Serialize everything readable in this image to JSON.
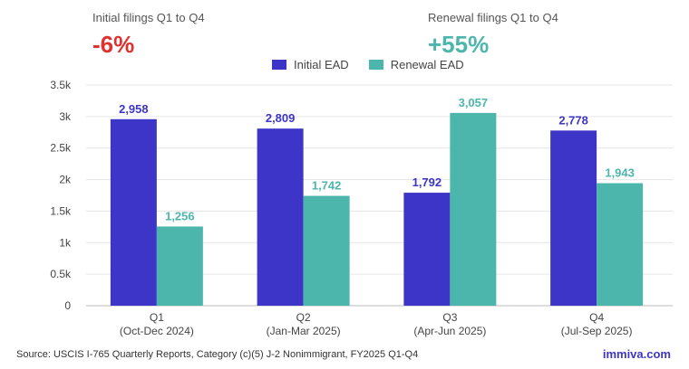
{
  "kpis": [
    {
      "label": "Initial filings Q1 to Q4",
      "value": "-6%"
    },
    {
      "label": "Renewal filings Q1 to Q4",
      "value": "+55%"
    }
  ],
  "colors": {
    "initial": "#3d35c8",
    "renewal": "#4db6ac",
    "grid": "#e6e6e6",
    "axis": "#444444"
  },
  "chart_data": {
    "type": "bar",
    "categories": [
      {
        "line1": "Q1",
        "line2": "(Oct-Dec 2024)"
      },
      {
        "line1": "Q2",
        "line2": "(Jan-Mar 2025)"
      },
      {
        "line1": "Q3",
        "line2": "(Apr-Jun 2025)"
      },
      {
        "line1": "Q4",
        "line2": "(Jul-Sep 2025)"
      }
    ],
    "series": [
      {
        "name": "Initial EAD",
        "values": [
          2958,
          2809,
          1792,
          2778
        ],
        "labels": [
          "2,958",
          "2,809",
          "1,792",
          "2,778"
        ]
      },
      {
        "name": "Renewal EAD",
        "values": [
          1256,
          1742,
          3057,
          1943
        ],
        "labels": [
          "1,256",
          "1,742",
          "3,057",
          "1,943"
        ]
      }
    ],
    "ylim": [
      0,
      3500
    ],
    "yticks": [
      0,
      500,
      1000,
      1500,
      2000,
      2500,
      3000,
      3500
    ],
    "ytick_labels": [
      "0",
      "0.5k",
      "1k",
      "1.5k",
      "2k",
      "2.5k",
      "3k",
      "3.5k"
    ],
    "grid": true,
    "legend": "top-center"
  },
  "footer": {
    "source": "Source: USCIS I-765 Quarterly Reports, Category (c)(5) J-2 Nonimmigrant, FY2025 Q1-Q4",
    "brand": "immiva.com"
  }
}
